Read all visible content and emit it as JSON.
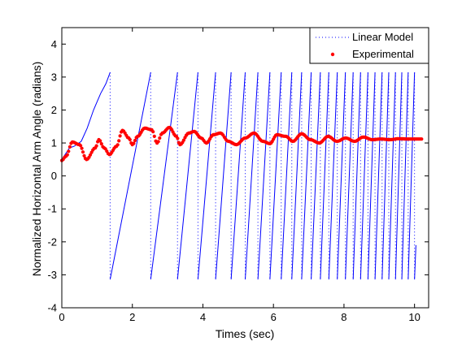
{
  "chart_data": {
    "type": "line",
    "title": "",
    "xlabel": "Times (sec)",
    "ylabel": "Normalized Horizontal Arm Angle (radians)",
    "xlim": [
      0,
      10.4
    ],
    "ylim": [
      -4,
      4.5
    ],
    "xticks": [
      0,
      2,
      4,
      6,
      8,
      10
    ],
    "yticks": [
      -4,
      -3,
      -2,
      -1,
      0,
      1,
      2,
      3,
      4
    ],
    "grid": false,
    "legend": {
      "placement": "top-right"
    },
    "series": [
      {
        "name": "Linear Model",
        "color": "#0000ff",
        "style": "dotted-line",
        "wrap_times": [
          1.37,
          2.52,
          3.28,
          3.86,
          4.36,
          4.8,
          5.2,
          5.56,
          5.9,
          6.22,
          6.52,
          6.8,
          7.07,
          7.33,
          7.57,
          7.81,
          8.04,
          8.26,
          8.47,
          8.68,
          8.88,
          9.08,
          9.27,
          9.46,
          9.64,
          9.82,
          10.0
        ],
        "start_values": [
          [
            0,
            0.5
          ],
          [
            0.22,
            0.85
          ],
          [
            0.35,
            0.9
          ],
          [
            0.55,
            1.05
          ],
          [
            0.72,
            1.45
          ],
          [
            0.9,
            2.0
          ],
          [
            1.1,
            2.5
          ],
          [
            1.25,
            2.8
          ],
          [
            1.37,
            3.14
          ]
        ],
        "end_value": [
          10.04,
          -2.1
        ],
        "ymin": -3.14,
        "ymax": 3.14
      },
      {
        "name": "Experimental",
        "color": "#ff0000",
        "style": "markers",
        "points": [
          [
            0.0,
            0.47
          ],
          [
            0.12,
            0.6
          ],
          [
            0.3,
            1.03
          ],
          [
            0.5,
            0.95
          ],
          [
            0.7,
            0.5
          ],
          [
            0.95,
            0.85
          ],
          [
            1.05,
            1.1
          ],
          [
            1.2,
            0.85
          ],
          [
            1.35,
            0.65
          ],
          [
            1.55,
            0.9
          ],
          [
            1.72,
            1.38
          ],
          [
            1.9,
            1.15
          ],
          [
            2.0,
            0.95
          ],
          [
            2.15,
            1.2
          ],
          [
            2.35,
            1.45
          ],
          [
            2.55,
            1.4
          ],
          [
            2.7,
            1.0
          ],
          [
            2.85,
            1.3
          ],
          [
            3.05,
            1.47
          ],
          [
            3.25,
            1.2
          ],
          [
            3.35,
            0.95
          ],
          [
            3.6,
            1.3
          ],
          [
            3.75,
            1.35
          ],
          [
            3.95,
            1.15
          ],
          [
            4.1,
            1.0
          ],
          [
            4.3,
            1.25
          ],
          [
            4.5,
            1.3
          ],
          [
            4.72,
            1.05
          ],
          [
            4.95,
            0.95
          ],
          [
            5.2,
            1.15
          ],
          [
            5.45,
            1.3
          ],
          [
            5.7,
            1.05
          ],
          [
            5.9,
            0.98
          ],
          [
            6.1,
            1.25
          ],
          [
            6.35,
            1.2
          ],
          [
            6.55,
            1.05
          ],
          [
            6.8,
            1.28
          ],
          [
            7.05,
            1.1
          ],
          [
            7.3,
            1.0
          ],
          [
            7.55,
            1.2
          ],
          [
            7.8,
            1.05
          ],
          [
            8.05,
            1.15
          ],
          [
            8.3,
            1.05
          ],
          [
            8.55,
            1.18
          ],
          [
            8.8,
            1.1
          ],
          [
            9.05,
            1.12
          ],
          [
            9.3,
            1.1
          ],
          [
            9.55,
            1.13
          ],
          [
            9.8,
            1.12
          ],
          [
            10.0,
            1.12
          ],
          [
            10.2,
            1.12
          ]
        ]
      }
    ]
  }
}
